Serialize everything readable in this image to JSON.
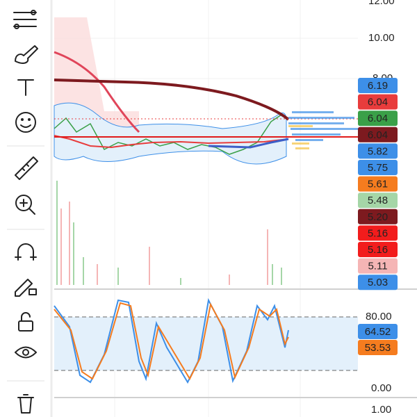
{
  "price_axis": {
    "labels": [
      "12.00",
      "10.00",
      "8.00"
    ]
  },
  "price_badges": [
    {
      "label": "6.19",
      "color": "#3d8fe8",
      "text_color": "#ffffff"
    },
    {
      "label": "6.04",
      "color": "#e83c3c",
      "text_color": "#ffffff"
    },
    {
      "label": "6.04",
      "color": "#3aa048",
      "text_color": "#ffffff"
    },
    {
      "label": "6.04",
      "color": "#7d1a1f",
      "text_color": "#ffffff"
    },
    {
      "label": "5.82",
      "color": "#3d8fe8",
      "text_color": "#ffffff"
    },
    {
      "label": "5.75",
      "color": "#3d8fe8",
      "text_color": "#ffffff"
    },
    {
      "label": "5.61",
      "color": "#f57c1f",
      "text_color": "#ffffff"
    },
    {
      "label": "5.48",
      "color": "#a5d6a7",
      "text_color": "#111111"
    },
    {
      "label": "5.20",
      "color": "#7d1a1f",
      "text_color": "#ffffff"
    },
    {
      "label": "5.16",
      "color": "#f21c1c",
      "text_color": "#ffffff"
    },
    {
      "label": "5.16",
      "color": "#f21c1c",
      "text_color": "#ffffff"
    },
    {
      "label": "5.11",
      "color": "#f5b5b5",
      "text_color": "#111111"
    },
    {
      "label": "5.03",
      "color": "#3d8fe8",
      "text_color": "#ffffff"
    }
  ],
  "oscillator": {
    "axis_labels": [
      "80.00",
      "0.00"
    ],
    "badges": [
      {
        "label": "64.52",
        "color": "#3d8fe8",
        "text_color": "#ffffff"
      },
      {
        "label": "53.53",
        "color": "#f57c1f",
        "text_color": "#ffffff"
      }
    ]
  },
  "bottom_pane": {
    "axis_labels": [
      "1.00"
    ]
  }
}
